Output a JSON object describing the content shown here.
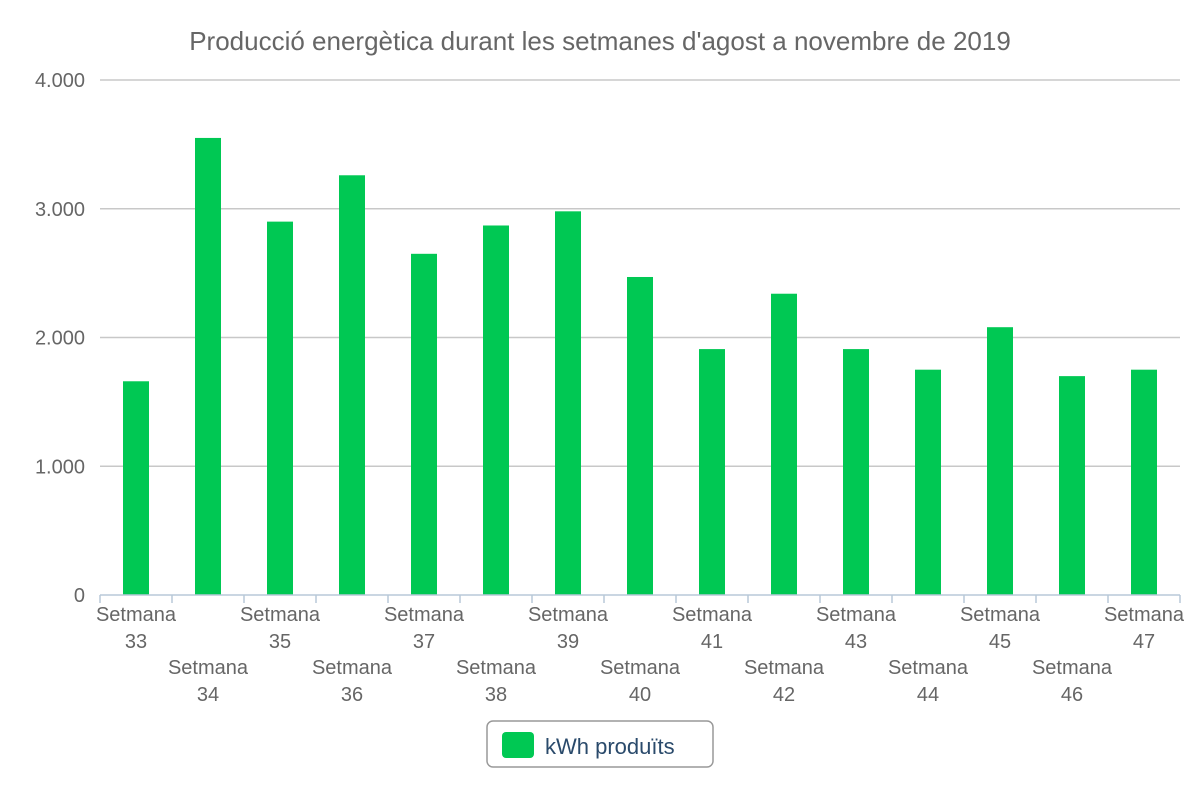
{
  "chart_data": {
    "type": "bar",
    "title": "Producció energètica durant les setmanes d'agost a novembre de 2019",
    "xlabel": "",
    "ylabel": "",
    "ylim": [
      0,
      4000
    ],
    "yticks": [
      {
        "value": 0,
        "label": "0"
      },
      {
        "value": 1000,
        "label": "1.000"
      },
      {
        "value": 2000,
        "label": "2.000"
      },
      {
        "value": 3000,
        "label": "3.000"
      },
      {
        "value": 4000,
        "label": "4.000"
      }
    ],
    "categories": [
      "Setmana 33",
      "Setmana 34",
      "Setmana 35",
      "Setmana 36",
      "Setmana 37",
      "Setmana 38",
      "Setmana 39",
      "Setmana 40",
      "Setmana 41",
      "Setmana 42",
      "Setmana 43",
      "Setmana 44",
      "Setmana 45",
      "Setmana 46",
      "Setmana 47"
    ],
    "series": [
      {
        "name": "kWh produïts",
        "color": "#00c853",
        "values": [
          1660,
          3550,
          2900,
          3260,
          2650,
          2870,
          2980,
          2470,
          1910,
          2340,
          1910,
          1750,
          2080,
          1700,
          1750
        ]
      }
    ],
    "grid": true,
    "legend": "bottom-center"
  }
}
